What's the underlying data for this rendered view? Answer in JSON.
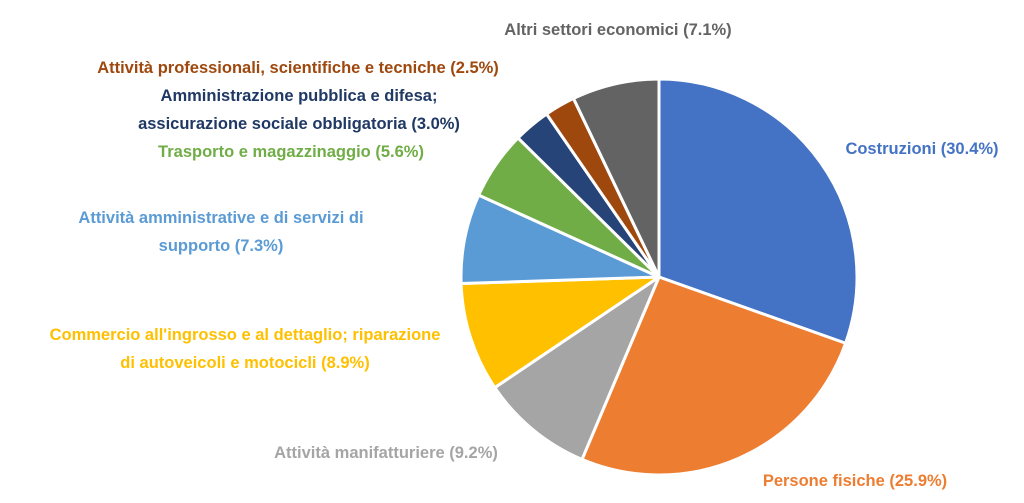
{
  "chart_data": {
    "type": "pie",
    "title": "",
    "slices": [
      {
        "lines": [
          "Costruzioni (30.4%)"
        ],
        "value": 30.4,
        "color": "#4472C4"
      },
      {
        "lines": [
          "Persone fisiche (25.9%)"
        ],
        "value": 25.9,
        "color": "#ED7D31"
      },
      {
        "lines": [
          "Attività manifatturiere (9.2%)"
        ],
        "value": 9.2,
        "color": "#A5A5A5"
      },
      {
        "lines": [
          "Commercio all'ingrosso e al dettaglio; riparazione",
          "di autoveicoli e motocicli (8.9%)"
        ],
        "value": 8.9,
        "color": "#FFC000"
      },
      {
        "lines": [
          "Attività amministrative e di servizi di",
          "supporto (7.3%)"
        ],
        "value": 7.3,
        "color": "#5B9BD5"
      },
      {
        "lines": [
          "Trasporto e magazzinaggio (5.6%)"
        ],
        "value": 5.6,
        "color": "#70AD47"
      },
      {
        "lines": [
          "Amministrazione pubblica e difesa;",
          "assicurazione sociale obbligatoria (3.0%)"
        ],
        "value": 3.0,
        "color": "#264478",
        "text_color": "#1F3864"
      },
      {
        "lines": [
          "Attività professionali, scientifiche e tecniche (2.5%)"
        ],
        "value": 2.5,
        "color": "#9E480E"
      },
      {
        "lines": [
          "Altri settori economici (7.1%)"
        ],
        "value": 7.1,
        "color": "#636363"
      }
    ],
    "start_angle": "12 o'clock",
    "direction": "clockwise",
    "legend": "none"
  }
}
